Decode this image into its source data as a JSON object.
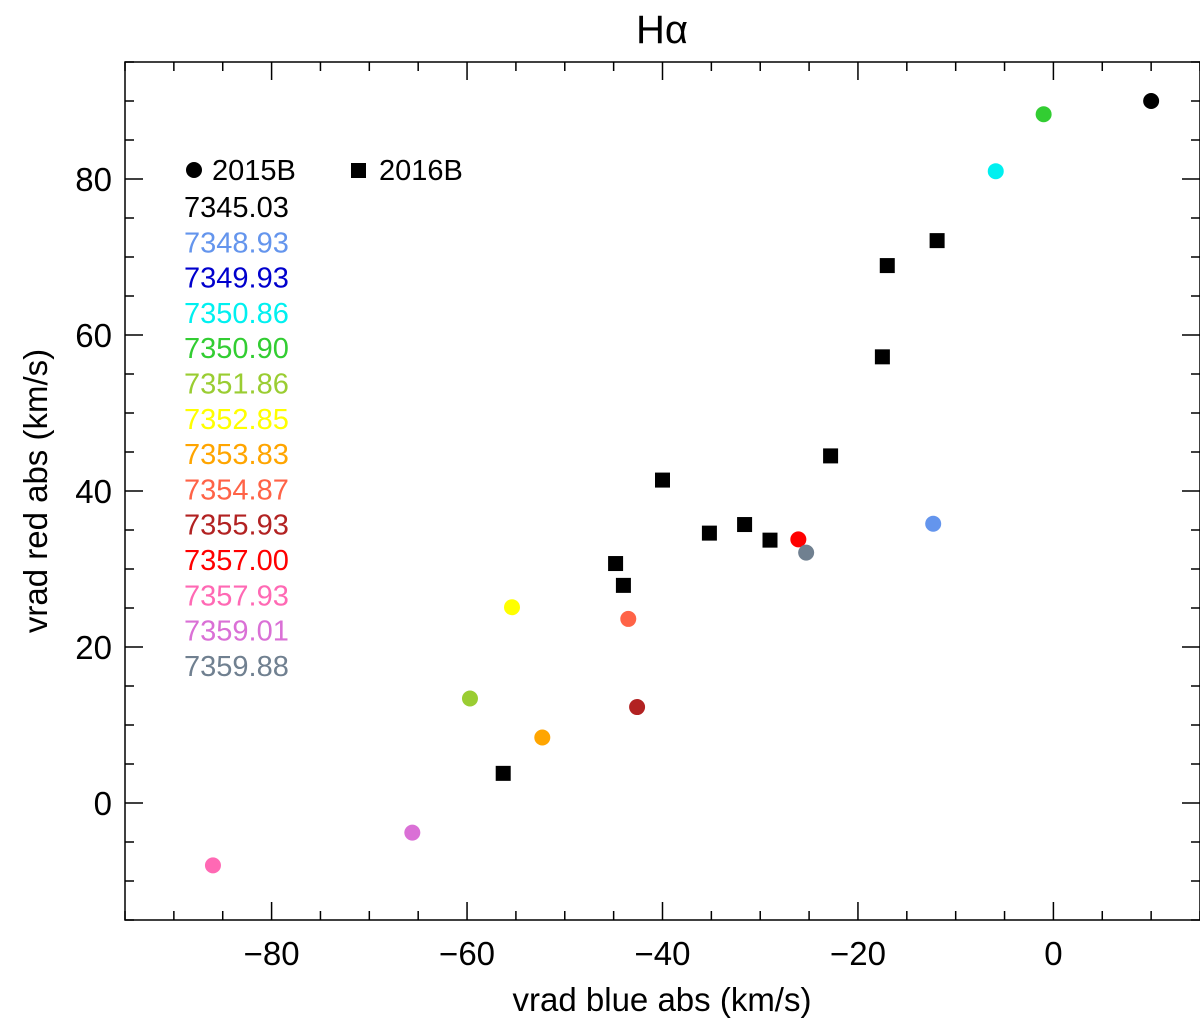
{
  "chart_data": {
    "type": "scatter",
    "title": "Hα",
    "xlabel": "vrad blue abs (km/s)",
    "ylabel": "vrad red abs (km/s)",
    "xlim": [
      -95,
      15
    ],
    "ylim": [
      -15,
      95
    ],
    "x_ticks": [
      -80,
      -60,
      -40,
      -20,
      0
    ],
    "y_ticks": [
      0,
      20,
      40,
      60,
      80
    ],
    "grid": false,
    "legend": {
      "placement": "top-left",
      "markers": [
        {
          "label": "2015B",
          "marker": "circle"
        },
        {
          "label": "2016B",
          "marker": "square"
        }
      ],
      "dates": [
        {
          "label": "7345.03",
          "color": "#000000"
        },
        {
          "label": "7348.93",
          "color": "#6495ED"
        },
        {
          "label": "7349.93",
          "color": "#0000CD"
        },
        {
          "label": "7350.86",
          "color": "#00F0F0"
        },
        {
          "label": "7350.90",
          "color": "#32CD32"
        },
        {
          "label": "7351.86",
          "color": "#9ACD32"
        },
        {
          "label": "7352.85",
          "color": "#FFFF00"
        },
        {
          "label": "7353.83",
          "color": "#FFA500"
        },
        {
          "label": "7354.87",
          "color": "#FF6347"
        },
        {
          "label": "7355.93",
          "color": "#B22222"
        },
        {
          "label": "7357.00",
          "color": "#FF0000"
        },
        {
          "label": "7357.93",
          "color": "#FF69B4"
        },
        {
          "label": "7359.01",
          "color": "#DA70D6"
        },
        {
          "label": "7359.88",
          "color": "#708090"
        }
      ]
    },
    "series": [
      {
        "name": "2015B",
        "marker": "circle",
        "points": [
          {
            "x": 10.0,
            "y": 90.0,
            "color": "#000000"
          },
          {
            "x": -12.3,
            "y": 35.8,
            "color": "#6495ED"
          },
          {
            "x": -5.9,
            "y": 81.0,
            "color": "#00F0F0"
          },
          {
            "x": -1.0,
            "y": 88.3,
            "color": "#32CD32"
          },
          {
            "x": -59.7,
            "y": 13.4,
            "color": "#9ACD32"
          },
          {
            "x": -55.4,
            "y": 25.1,
            "color": "#FFFF00"
          },
          {
            "x": -52.3,
            "y": 8.4,
            "color": "#FFA500"
          },
          {
            "x": -43.5,
            "y": 23.6,
            "color": "#FF6347"
          },
          {
            "x": -42.6,
            "y": 12.3,
            "color": "#B22222"
          },
          {
            "x": -26.1,
            "y": 33.8,
            "color": "#FF0000"
          },
          {
            "x": -86.0,
            "y": -8.0,
            "color": "#FF69B4"
          },
          {
            "x": -65.6,
            "y": -3.8,
            "color": "#DA70D6"
          },
          {
            "x": -25.3,
            "y": 32.1,
            "color": "#708090"
          }
        ]
      },
      {
        "name": "2016B",
        "marker": "square",
        "points": [
          {
            "x": -56.3,
            "y": 3.8,
            "color": "#000000"
          },
          {
            "x": -44.8,
            "y": 30.7,
            "color": "#000000"
          },
          {
            "x": -44.0,
            "y": 27.9,
            "color": "#000000"
          },
          {
            "x": -40.0,
            "y": 41.4,
            "color": "#000000"
          },
          {
            "x": -35.2,
            "y": 34.6,
            "color": "#000000"
          },
          {
            "x": -31.6,
            "y": 35.7,
            "color": "#000000"
          },
          {
            "x": -29.0,
            "y": 33.7,
            "color": "#000000"
          },
          {
            "x": -22.8,
            "y": 44.5,
            "color": "#000000"
          },
          {
            "x": -17.5,
            "y": 57.2,
            "color": "#000000"
          },
          {
            "x": -17.0,
            "y": 68.9,
            "color": "#000000"
          },
          {
            "x": -11.9,
            "y": 72.1,
            "color": "#000000"
          }
        ]
      }
    ]
  }
}
